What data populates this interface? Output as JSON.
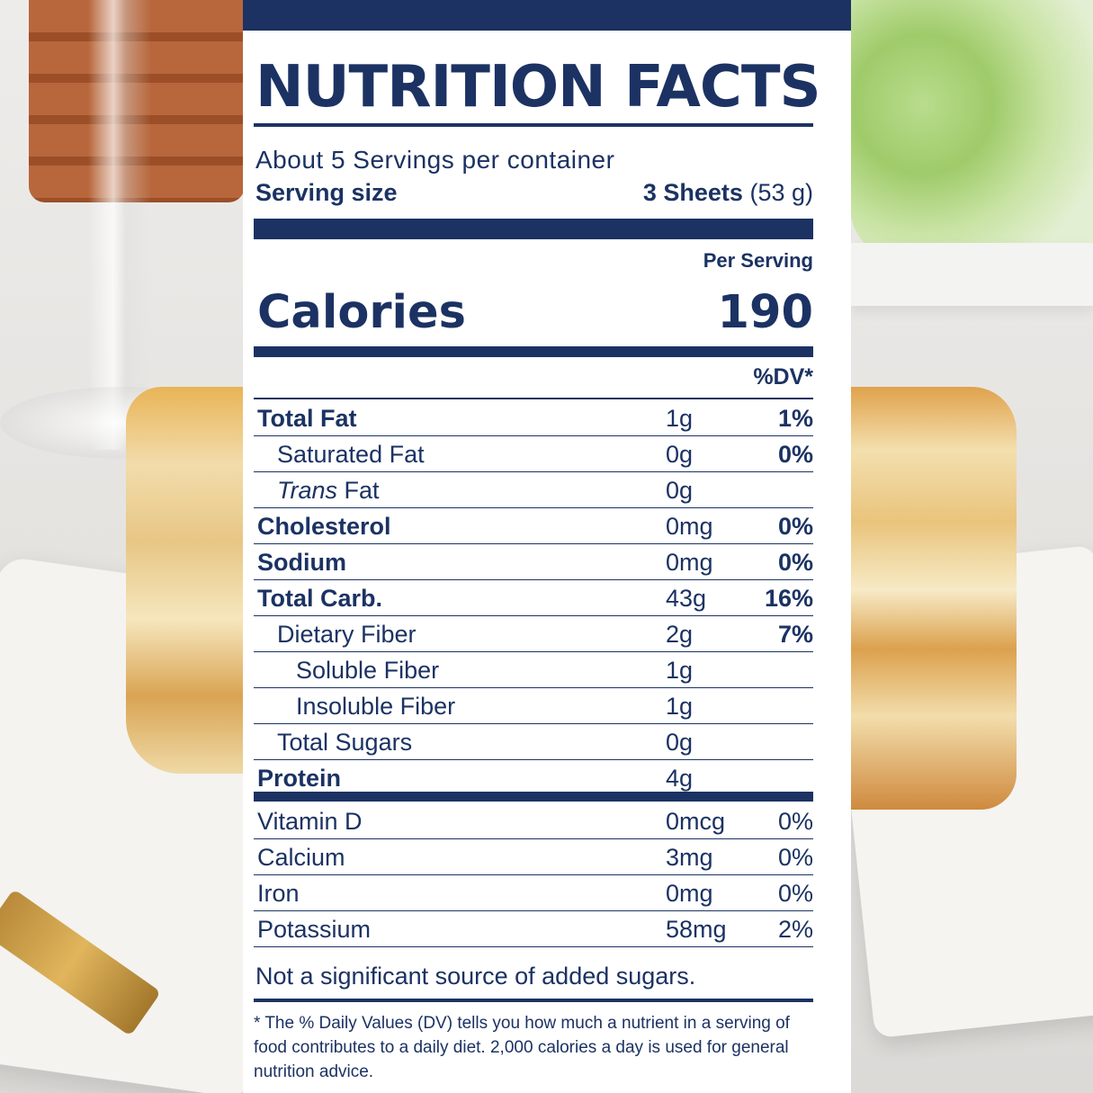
{
  "label": {
    "title": "NUTRITION FACTS",
    "servings_per_container": "About 5 Servings per container",
    "serving_size_label": "Serving size",
    "serving_size_amount": "3 Sheets",
    "serving_size_weight": "(53 g)",
    "per_serving": "Per Serving",
    "calories_label": "Calories",
    "calories_value": "190",
    "dv_header": "%DV*",
    "nutrients": [
      {
        "name": "Total Fat",
        "amount": "1g",
        "dv": "1%"
      },
      {
        "name": "Saturated Fat",
        "amount": "0g",
        "dv": "0%"
      },
      {
        "name_italic": "Trans",
        "name": " Fat",
        "amount": "0g",
        "dv": ""
      },
      {
        "name": "Cholesterol",
        "amount": "0mg",
        "dv": "0%"
      },
      {
        "name": "Sodium",
        "amount": "0mg",
        "dv": "0%"
      },
      {
        "name": "Total Carb.",
        "amount": "43g",
        "dv": "16%"
      },
      {
        "name": "Dietary Fiber",
        "amount": "2g",
        "dv": "7%"
      },
      {
        "name": "Soluble Fiber",
        "amount": "1g",
        "dv": ""
      },
      {
        "name": "Insoluble Fiber",
        "amount": "1g",
        "dv": ""
      },
      {
        "name": "Total Sugars",
        "amount": "0g",
        "dv": ""
      },
      {
        "name": "Protein",
        "amount": "4g",
        "dv": ""
      }
    ],
    "vitamins": [
      {
        "name": "Vitamin D",
        "amount": "0mcg",
        "dv": "0%"
      },
      {
        "name": "Calcium",
        "amount": "3mg",
        "dv": "0%"
      },
      {
        "name": "Iron",
        "amount": "0mg",
        "dv": "0%"
      },
      {
        "name": "Potassium",
        "amount": "58mg",
        "dv": "2%"
      }
    ],
    "added_sugars_note": "Not a significant source of added sugars.",
    "footnote": "* The % Daily Values (DV) tells you how much a nutrient in a serving of food contributes to a daily diet. 2,000 calories a day is used for general nutrition advice."
  },
  "colors": {
    "brand_navy": "#1b3263",
    "panel_background": "#ffffff"
  }
}
